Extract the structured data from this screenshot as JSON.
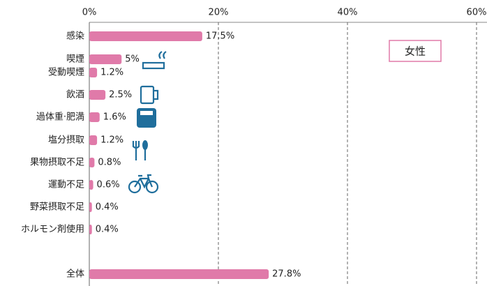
{
  "chart_data": {
    "type": "bar",
    "orientation": "horizontal",
    "annotation": "女性",
    "categories": [
      "感染",
      "喫煙",
      "受動喫煙",
      "飲酒",
      "過体重·肥満",
      "塩分摂取",
      "果物摂取不足",
      "運動不足",
      "野菜摂取不足",
      "ホルモン剤使用",
      "全体"
    ],
    "values": [
      17.5,
      5,
      1.2,
      2.5,
      1.6,
      1.2,
      0.8,
      0.6,
      0.4,
      0.4,
      27.8
    ],
    "value_labels": [
      "17.5%",
      "5%",
      "1.2%",
      "2.5%",
      "1.6%",
      "1.2%",
      "0.8%",
      "0.6%",
      "0.4%",
      "0.4%",
      "27.8%"
    ],
    "color": "#e07aa9",
    "xlim": [
      0,
      60
    ],
    "xticks": [
      {
        "value": 0,
        "label": "0%"
      },
      {
        "value": 20,
        "label": "20%"
      },
      {
        "value": 40,
        "label": "40%"
      },
      {
        "value": 60,
        "label": "60%"
      }
    ],
    "grid": true
  }
}
